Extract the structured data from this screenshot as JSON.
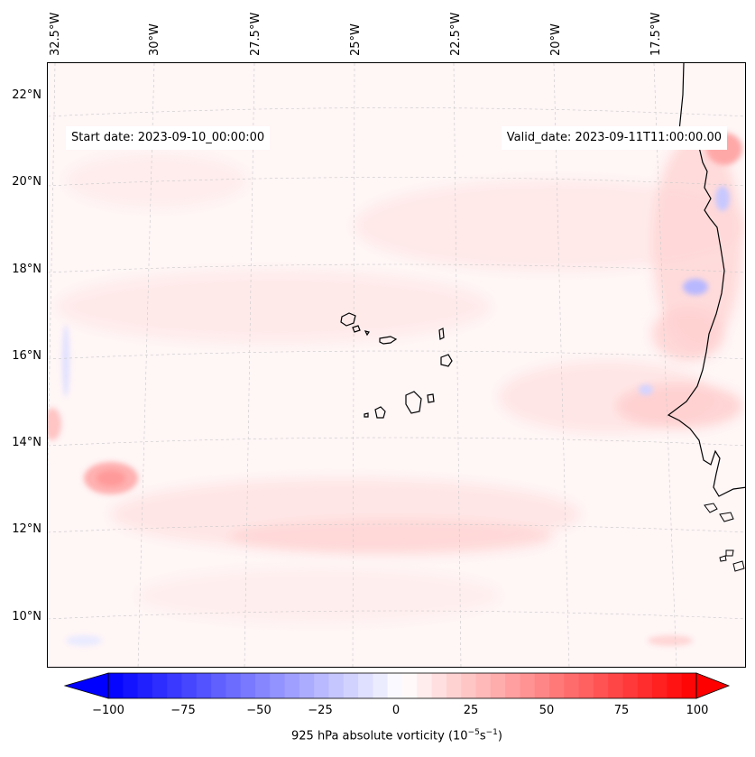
{
  "header": {
    "start_date": "Start date: 2023-09-10_00:00:00",
    "valid_date": "Valid_date: 2023-09-11T11:00:00.00"
  },
  "axes": {
    "longitude_labels": [
      "32.5°W",
      "30°W",
      "27.5°W",
      "25°W",
      "22.5°W",
      "20°W",
      "17.5°W"
    ],
    "latitude_labels": [
      "22°N",
      "20°N",
      "18°N",
      "16°N",
      "14°N",
      "12°N",
      "10°N"
    ],
    "gridlines": true
  },
  "colorbar": {
    "ticks": [
      "−100",
      "−75",
      "−50",
      "−25",
      "0",
      "25",
      "50",
      "75",
      "100"
    ],
    "title": "925 hPa absolute vorticity (10",
    "title_exp1": "−5",
    "title_mid": "s",
    "title_exp2": "−1",
    "title_end": ")",
    "range": [
      -100,
      100
    ],
    "colormap": "bwr",
    "min_color": "#0000ff",
    "mid_color": "#ffffff",
    "max_color": "#ff0000"
  },
  "map": {
    "field": "925 hPa absolute vorticity",
    "projection": "Lambert conformal",
    "region": "Eastern tropical Atlantic, Cabo Verde and West African coast"
  }
}
